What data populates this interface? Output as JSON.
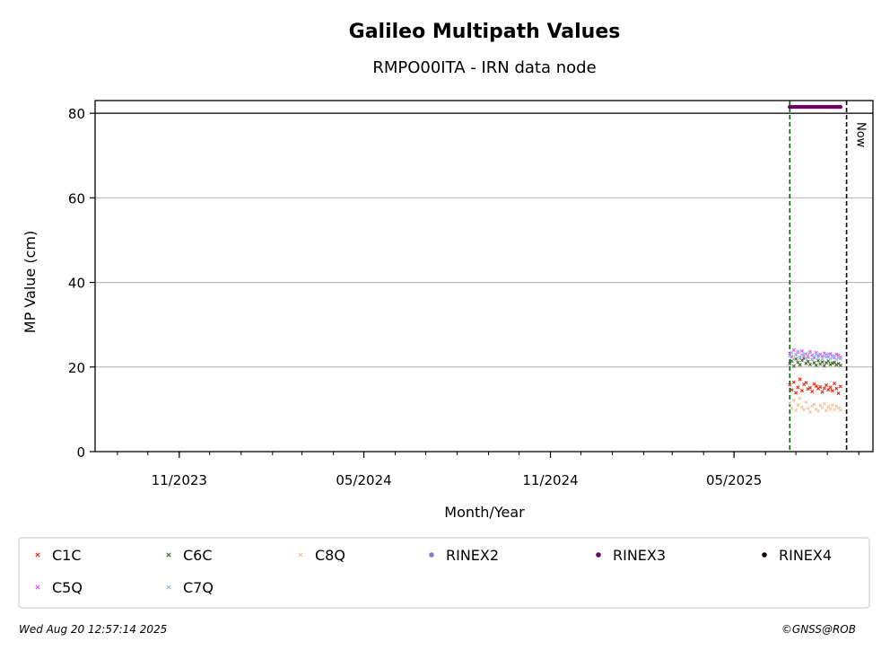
{
  "chart_data": {
    "type": "scatter",
    "title": "Galileo Multipath Values",
    "subtitle": "RMPO00ITA - IRN data node",
    "xlabel": "Month/Year",
    "ylabel": "MP Value (cm)",
    "ylim": [
      0,
      83
    ],
    "yticks": [
      0,
      20,
      40,
      60,
      80
    ],
    "xlim": [
      "2023-08-10",
      "2025-09-15"
    ],
    "xticks": [
      {
        "label": "11/2023",
        "date": "2023-11-01"
      },
      {
        "label": "05/2024",
        "date": "2024-05-01"
      },
      {
        "label": "11/2024",
        "date": "2024-11-01"
      },
      {
        "label": "05/2025",
        "date": "2025-05-01"
      }
    ],
    "grid": "horizontal",
    "reference_lines": [
      {
        "type": "horizontal",
        "y": 80,
        "color": "#000000",
        "style": "solid"
      },
      {
        "type": "vertical",
        "date": "2025-06-25",
        "color": "#006400",
        "style": "dashed"
      },
      {
        "type": "vertical",
        "date": "2025-08-20",
        "color": "#000000",
        "style": "dashed",
        "label": "Now"
      }
    ],
    "series": [
      {
        "name": "C1C",
        "color": "#e8301c",
        "marker": "x",
        "x_range": [
          "2025-06-25",
          "2025-08-14"
        ],
        "values": [
          15.8,
          14.6,
          16.4,
          13.9,
          15.2,
          17.1,
          14.4,
          15.9,
          16.3,
          14.8,
          15.1,
          14.2,
          16.0,
          15.5,
          14.9,
          15.3,
          14.1,
          15.0,
          15.7,
          14.6,
          15.2,
          14.4,
          16.1,
          14.9,
          13.8,
          15.4
        ]
      },
      {
        "name": "C6C",
        "color": "#4a6e2a",
        "marker": "x",
        "x_range": [
          "2025-06-25",
          "2025-08-14"
        ],
        "values": [
          20.8,
          21.4,
          20.2,
          21.9,
          21.1,
          20.5,
          21.6,
          22.0,
          20.9,
          21.3,
          20.6,
          21.8,
          21.0,
          20.4,
          21.5,
          20.7,
          21.2,
          20.3,
          21.0,
          21.4,
          20.6,
          20.9,
          21.1,
          20.5,
          20.8,
          20.4
        ]
      },
      {
        "name": "C8Q",
        "color": "#f5c6a5",
        "marker": "x",
        "x_range": [
          "2025-06-25",
          "2025-08-14"
        ],
        "values": [
          11.4,
          10.2,
          12.1,
          9.8,
          11.0,
          12.6,
          10.5,
          9.9,
          11.7,
          10.3,
          9.4,
          10.8,
          11.2,
          10.0,
          9.6,
          10.9,
          10.4,
          11.3,
          9.7,
          10.6,
          10.1,
          11.0,
          9.9,
          10.7,
          10.3,
          9.8
        ]
      },
      {
        "name": "RINEX2",
        "color": "#8b7bc8",
        "marker": "o",
        "values": []
      },
      {
        "name": "RINEX3",
        "color": "#6a0060",
        "marker": "o",
        "x_range": [
          "2025-06-25",
          "2025-08-14"
        ],
        "values": [
          81.5,
          81.5,
          81.5,
          81.5,
          81.5,
          81.5,
          81.5,
          81.5,
          81.5,
          81.5,
          81.5,
          81.5,
          81.5,
          81.5,
          81.5,
          81.5,
          81.5,
          81.5,
          81.5,
          81.5,
          81.5,
          81.5,
          81.5,
          81.5,
          81.5,
          81.5
        ]
      },
      {
        "name": "RINEX4",
        "color": "#1a0010",
        "marker": "o",
        "values": []
      },
      {
        "name": "C5Q",
        "color": "#ee55ee",
        "marker": "x",
        "x_range": [
          "2025-06-25",
          "2025-08-14"
        ],
        "values": [
          23.2,
          22.4,
          24.0,
          22.9,
          23.5,
          22.1,
          23.8,
          22.6,
          23.1,
          22.3,
          23.6,
          22.8,
          22.2,
          23.4,
          22.7,
          23.0,
          22.5,
          23.3,
          22.9,
          22.4,
          23.1,
          22.6,
          22.2,
          23.0,
          22.8,
          22.3
        ]
      },
      {
        "name": "C7Q",
        "color": "#94c0e2",
        "marker": "x",
        "x_range": [
          "2025-06-25",
          "2025-08-14"
        ],
        "values": [
          22.6,
          23.4,
          21.9,
          22.8,
          23.7,
          22.3,
          22.9,
          23.1,
          22.0,
          22.7,
          23.3,
          21.8,
          22.5,
          23.0,
          22.2,
          22.8,
          21.9,
          22.6,
          22.3,
          23.1,
          22.0,
          22.4,
          22.7,
          21.8,
          22.2,
          21.9
        ]
      }
    ]
  },
  "footer": {
    "timestamp": "Wed Aug 20 12:57:14 2025",
    "copyright": "©GNSS@ROB"
  }
}
